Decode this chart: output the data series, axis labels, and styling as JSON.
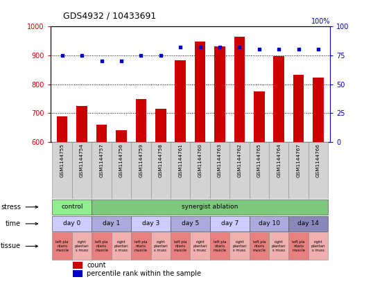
{
  "title": "GDS4932 / 10433691",
  "samples": [
    "GSM1144755",
    "GSM1144754",
    "GSM1144757",
    "GSM1144756",
    "GSM1144759",
    "GSM1144758",
    "GSM1144761",
    "GSM1144760",
    "GSM1144763",
    "GSM1144762",
    "GSM1144765",
    "GSM1144764",
    "GSM1144767",
    "GSM1144766"
  ],
  "counts": [
    688,
    724,
    660,
    642,
    748,
    716,
    882,
    948,
    930,
    964,
    776,
    898,
    832,
    822
  ],
  "percentiles": [
    75,
    75,
    70,
    70,
    75,
    75,
    82,
    82,
    82,
    82,
    80,
    80,
    80,
    80
  ],
  "bar_color": "#CC0000",
  "dot_color": "#0000CC",
  "ylim_left": [
    600,
    1000
  ],
  "ylim_right": [
    0,
    100
  ],
  "yticks_left": [
    600,
    700,
    800,
    900,
    1000
  ],
  "yticks_right": [
    0,
    25,
    50,
    75,
    100
  ],
  "dotted_line_values": [
    700,
    800,
    900
  ],
  "stress_groups": [
    {
      "label": "control",
      "start": 0,
      "end": 2,
      "color": "#90EE90"
    },
    {
      "label": "synergist ablation",
      "start": 2,
      "end": 14,
      "color": "#7DC87D"
    }
  ],
  "time_colors": [
    "#CCCCFF",
    "#AAAADD",
    "#CCCCFF",
    "#AAAADD",
    "#CCCCFF",
    "#AAAADD",
    "#8888BB"
  ],
  "time_groups": [
    {
      "label": "day 0",
      "start": 0,
      "end": 2
    },
    {
      "label": "day 1",
      "start": 2,
      "end": 4
    },
    {
      "label": "day 3",
      "start": 4,
      "end": 6
    },
    {
      "label": "day 5",
      "start": 6,
      "end": 8
    },
    {
      "label": "day 7",
      "start": 8,
      "end": 10
    },
    {
      "label": "day 10",
      "start": 10,
      "end": 12
    },
    {
      "label": "day 14",
      "start": 12,
      "end": 14
    }
  ],
  "tissue_left_color": "#E88080",
  "tissue_right_color": "#F0B0B0",
  "tissue_left_label": "left pla\nntaris\nmuscle",
  "tissue_right_label": "right\nplantari\ns musc",
  "left_axis_color": "#CC0000",
  "right_axis_color": "#0000CC",
  "bg_color": "#FFFFFF",
  "label_stress": "stress",
  "label_time": "time",
  "label_tissue": "tissue",
  "legend_count": "count",
  "legend_percentile": "percentile rank within the sample",
  "right_axis_label": "100%"
}
